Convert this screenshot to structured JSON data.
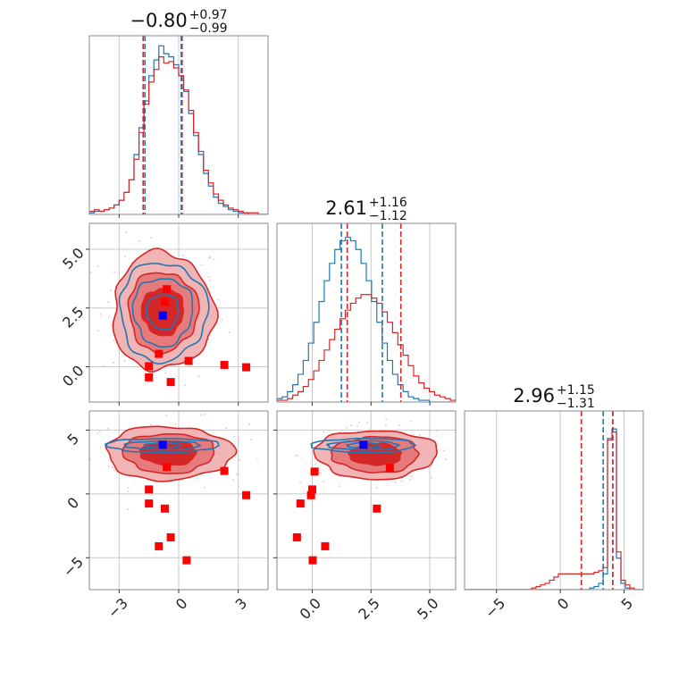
{
  "chart_data": {
    "type": "corner",
    "parameters": 3,
    "colors": {
      "posterior_a": "#d62728",
      "posterior_b": "#1f77b4",
      "fill_light": "#f2b5b5",
      "fill_mid": "#e77a7a",
      "fill_dark": "#d62728",
      "scatter_points": "#ff0000",
      "true_value_marker": "#0000ff",
      "grid": "#c8c8c8",
      "faint_samples": "#f5b7cc"
    },
    "titles": [
      {
        "median": "−0.80",
        "plus": "+0.97",
        "minus": "−0.99"
      },
      {
        "median": "2.61",
        "plus": "+1.16",
        "minus": "−1.12"
      },
      {
        "median": "2.96",
        "plus": "+1.15",
        "minus": "−1.31"
      }
    ],
    "axes": [
      {
        "range": [
          -4.5,
          4.5
        ],
        "ticks": [
          -3,
          0,
          3
        ],
        "tick_labels": [
          "−3",
          "0",
          "3"
        ]
      },
      {
        "range": [
          -1.5,
          6.1
        ],
        "ticks": [
          0,
          2.5,
          5
        ],
        "tick_labels": [
          "0.0",
          "2.5",
          "5.0"
        ]
      },
      {
        "range": [
          -7.5,
          6.5
        ],
        "ticks": [
          -5,
          0,
          5
        ],
        "tick_labels": [
          "−5",
          "0",
          "5"
        ]
      }
    ],
    "histograms": [
      {
        "param": 0,
        "bin_range": [
          -4.5,
          4.5
        ],
        "red_counts": [
          2,
          3,
          2,
          3,
          4,
          6,
          9,
          14,
          22,
          35,
          52,
          70,
          84,
          92,
          100,
          96,
          97,
          93,
          88,
          79,
          66,
          52,
          40,
          28,
          20,
          13,
          9,
          6,
          4,
          3,
          2,
          1,
          1,
          1,
          0,
          0
        ],
        "blue_counts": [
          1,
          2,
          2,
          3,
          4,
          6,
          9,
          14,
          22,
          38,
          55,
          72,
          88,
          98,
          107,
          102,
          100,
          95,
          88,
          78,
          64,
          50,
          38,
          26,
          18,
          11,
          7,
          5,
          3,
          2,
          1,
          1,
          0,
          0,
          0,
          0
        ],
        "red_quantiles": [
          -1.79,
          0.17
        ],
        "blue_quantiles": [
          -1.7,
          0.13
        ],
        "ymax": 110
      },
      {
        "param": 1,
        "bin_range": [
          -1.5,
          6.1
        ],
        "red_counts": [
          1,
          1,
          2,
          4,
          6,
          9,
          13,
          18,
          24,
          30,
          36,
          42,
          48,
          53,
          57,
          60,
          62,
          62,
          60,
          57,
          52,
          46,
          40,
          33,
          27,
          21,
          15,
          11,
          8,
          6,
          4,
          3,
          2,
          1
        ],
        "blue_counts": [
          2,
          3,
          6,
          10,
          16,
          24,
          34,
          46,
          58,
          70,
          80,
          88,
          93,
          95,
          93,
          88,
          80,
          70,
          58,
          46,
          34,
          24,
          16,
          10,
          6,
          3,
          2,
          1,
          1,
          0,
          0,
          0,
          0,
          0
        ],
        "red_quantiles": [
          1.49,
          3.77
        ],
        "blue_quantiles": [
          1.24,
          2.98
        ],
        "ymax": 100
      },
      {
        "param": 2,
        "bin_range": [
          -7.5,
          6.5
        ],
        "red_counts": [
          0,
          0,
          0,
          0,
          0,
          0,
          0,
          0,
          0,
          0,
          0,
          0,
          0,
          0,
          0,
          1,
          2,
          3,
          4,
          6,
          8,
          10,
          10,
          10,
          10,
          10,
          10,
          10,
          10,
          11,
          12,
          14,
          95,
          100,
          24,
          6,
          3,
          1,
          0,
          0
        ],
        "blue_counts": [
          0,
          0,
          0,
          0,
          0,
          0,
          0,
          0,
          0,
          0,
          0,
          0,
          0,
          0,
          0,
          0,
          0,
          0,
          0,
          0,
          0,
          0,
          0,
          0,
          0,
          0,
          0,
          0,
          1,
          2,
          4,
          10,
          96,
          102,
          20,
          4,
          1,
          0,
          0,
          0
        ],
        "red_quantiles": [
          1.65,
          4.11
        ],
        "blue_quantiles": [
          3.36,
          4.11
        ],
        "ymax": 110
      }
    ],
    "contour_panels": [
      {
        "x_param": 0,
        "y_param": 1,
        "center": [
          -0.8,
          2.35
        ],
        "red_levels": [
          {
            "rx": 2.55,
            "ry": 2.5
          },
          {
            "rx": 1.75,
            "ry": 1.7
          },
          {
            "rx": 1.05,
            "ry": 1.0
          }
        ],
        "blue_levels": [
          {
            "rx": 2.2,
            "ry": 2.1
          },
          {
            "rx": 1.5,
            "ry": 1.45
          },
          {
            "rx": 0.8,
            "ry": 0.75
          }
        ],
        "true_value": [
          -0.8,
          2.18
        ],
        "points": [
          [
            -0.6,
            3.3
          ],
          [
            -0.7,
            2.75
          ],
          [
            -1.0,
            0.55
          ],
          [
            -1.5,
            0.02
          ],
          [
            -1.5,
            -0.45
          ],
          [
            -0.4,
            -0.65
          ],
          [
            0.5,
            0.25
          ],
          [
            2.3,
            0.08
          ],
          [
            3.4,
            -0.02
          ]
        ]
      },
      {
        "x_param": 0,
        "y_param": 2,
        "center": [
          -0.5,
          3.2
        ],
        "red_levels": [
          {
            "rx": 3.2,
            "ry": 2.1
          },
          {
            "rx": 2.3,
            "ry": 1.55
          },
          {
            "rx": 1.4,
            "ry": 0.95
          }
        ],
        "blue_levels": [
          {
            "rx": 2.85,
            "ry": 0.55
          },
          {
            "rx": 1.9,
            "ry": 0.35
          },
          {
            "rx": 0.9,
            "ry": 0.2
          }
        ],
        "blue_center": [
          -0.8,
          3.8
        ],
        "true_value": [
          -0.8,
          3.85
        ],
        "points": [
          [
            -0.6,
            2.1
          ],
          [
            -1.5,
            0.35
          ],
          [
            -1.5,
            -0.75
          ],
          [
            -0.7,
            -1.15
          ],
          [
            -0.4,
            -3.4
          ],
          [
            -1.0,
            -4.1
          ],
          [
            0.4,
            -5.2
          ],
          [
            2.3,
            1.8
          ],
          [
            3.4,
            -0.1
          ]
        ]
      },
      {
        "x_param": 1,
        "y_param": 2,
        "center": [
          2.7,
          3.1
        ],
        "red_levels": [
          {
            "rx": 2.6,
            "ry": 1.9
          },
          {
            "rx": 1.85,
            "ry": 1.4
          },
          {
            "rx": 1.1,
            "ry": 0.85
          }
        ],
        "blue_levels": [
          {
            "rx": 2.2,
            "ry": 0.55
          },
          {
            "rx": 1.5,
            "ry": 0.35
          },
          {
            "rx": 0.7,
            "ry": 0.2
          }
        ],
        "blue_center": [
          2.2,
          3.8
        ],
        "true_value": [
          2.18,
          3.85
        ],
        "points": [
          [
            3.3,
            2.05
          ],
          [
            0.1,
            1.75
          ],
          [
            0.0,
            0.35
          ],
          [
            -0.05,
            -0.1
          ],
          [
            -0.5,
            -0.75
          ],
          [
            2.75,
            -1.15
          ],
          [
            -0.65,
            -3.4
          ],
          [
            0.55,
            -4.1
          ],
          [
            0.02,
            -5.2
          ]
        ]
      }
    ]
  }
}
